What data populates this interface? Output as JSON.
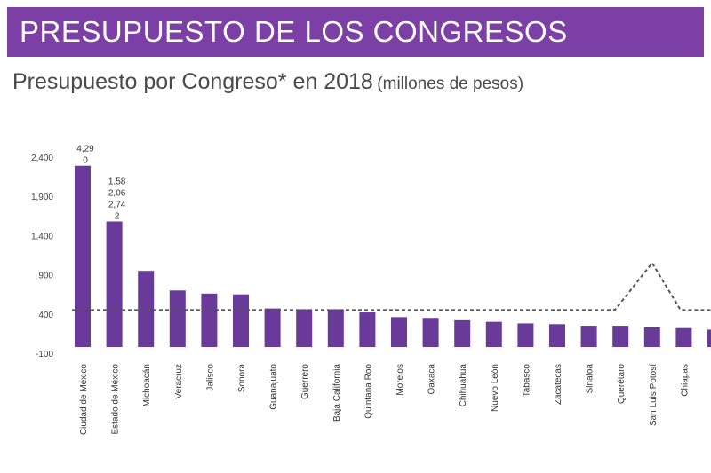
{
  "header": {
    "title": "PRESUPUESTO DE LOS CONGRESOS",
    "subtitle": "Presupuesto por Congreso* en 2018",
    "unit": "(millones de pesos)"
  },
  "colors": {
    "banner": "#7b3fa6",
    "bar": "#6a3a9a",
    "reference_line": "#555555"
  },
  "chart_data": {
    "type": "bar",
    "title": "Presupuesto por Congreso* en 2018",
    "ylabel": "",
    "xlabel": "",
    "ylim": [
      -100,
      2400
    ],
    "yticks": [
      "-100",
      "400",
      "900",
      "1,400",
      "1,900",
      "2,400"
    ],
    "ytick_values": [
      -100,
      400,
      900,
      1400,
      1900,
      2400
    ],
    "categories": [
      "Ciudad de México",
      "Estado de México",
      "Michoacán",
      "Veracruz",
      "Jalisco",
      "Sonora",
      "Guanajuato",
      "Guerrero",
      "Baja California",
      "Quintana Roo",
      "Morelos",
      "Oaxaca",
      "Chihuahua",
      "Nuevo León",
      "Tabasco",
      "Zacatecas",
      "Sinaloa",
      "Querétaro",
      "San Luis Potosí",
      "Chiapas",
      ""
    ],
    "values": [
      2290,
      1580,
      950,
      700,
      660,
      650,
      470,
      460,
      460,
      420,
      360,
      350,
      320,
      300,
      280,
      270,
      250,
      250,
      230,
      220,
      200
    ],
    "bar_labels": [
      {
        "index": 0,
        "lines": [
          "4,29",
          "0"
        ]
      },
      {
        "index": 1,
        "lines": [
          "1,58",
          "2,06",
          "2,74",
          "2"
        ]
      }
    ],
    "reference_line": {
      "style": "dashed",
      "value": 450,
      "peak_category": "San Luis Potosí",
      "peak_value": 1050
    },
    "grid": false,
    "legend": "none"
  }
}
